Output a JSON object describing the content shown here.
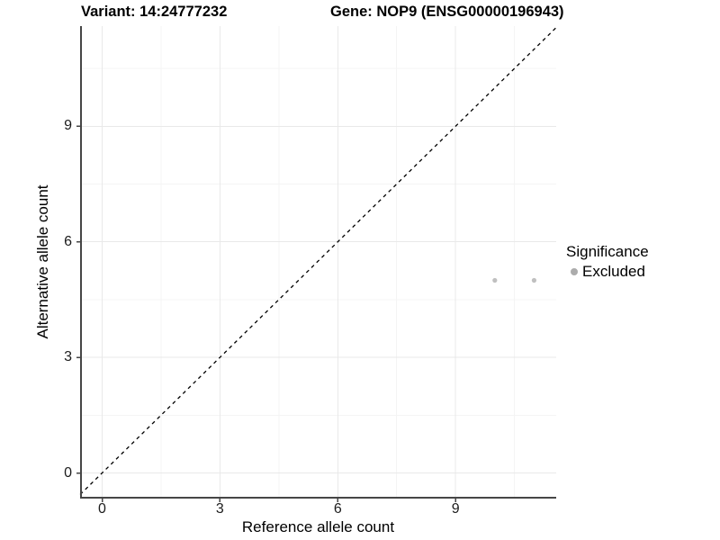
{
  "figure": {
    "title_left": "Variant: 14:24777232",
    "title_right": "Gene: NOP9 (ENSG00000196943)"
  },
  "chart_data": {
    "type": "scatter",
    "title": "Variant: 14:24777232  |  Gene: NOP9 (ENSG00000196943)",
    "xlabel": "Reference allele count",
    "ylabel": "Alternative allele count",
    "xlim": [
      -0.56,
      11.56
    ],
    "ylim": [
      -0.64,
      11.6
    ],
    "x_ticks": [
      0,
      3,
      6,
      9
    ],
    "y_ticks": [
      0,
      3,
      6,
      9
    ],
    "x_minor_ticks": [
      1.5,
      4.5,
      7.5,
      10.5
    ],
    "y_minor_ticks": [
      1.5,
      4.5,
      7.5,
      10.5
    ],
    "grid": "major+minor",
    "reference_line": {
      "type": "identity y=x",
      "style": "dashed",
      "color": "#000000"
    },
    "series": [
      {
        "name": "Excluded",
        "color": "#c0c0c0",
        "points": [
          [
            10,
            5
          ],
          [
            11,
            5
          ]
        ]
      }
    ],
    "legend": {
      "title": "Significance",
      "position": "right",
      "entries": [
        {
          "label": "Excluded",
          "color": "#acacac"
        }
      ]
    },
    "style": {
      "axis_color": "#464646",
      "grid_major_color": "#e9e9e9",
      "grid_minor_color": "#f4f4f4",
      "background": "#ffffff"
    }
  }
}
